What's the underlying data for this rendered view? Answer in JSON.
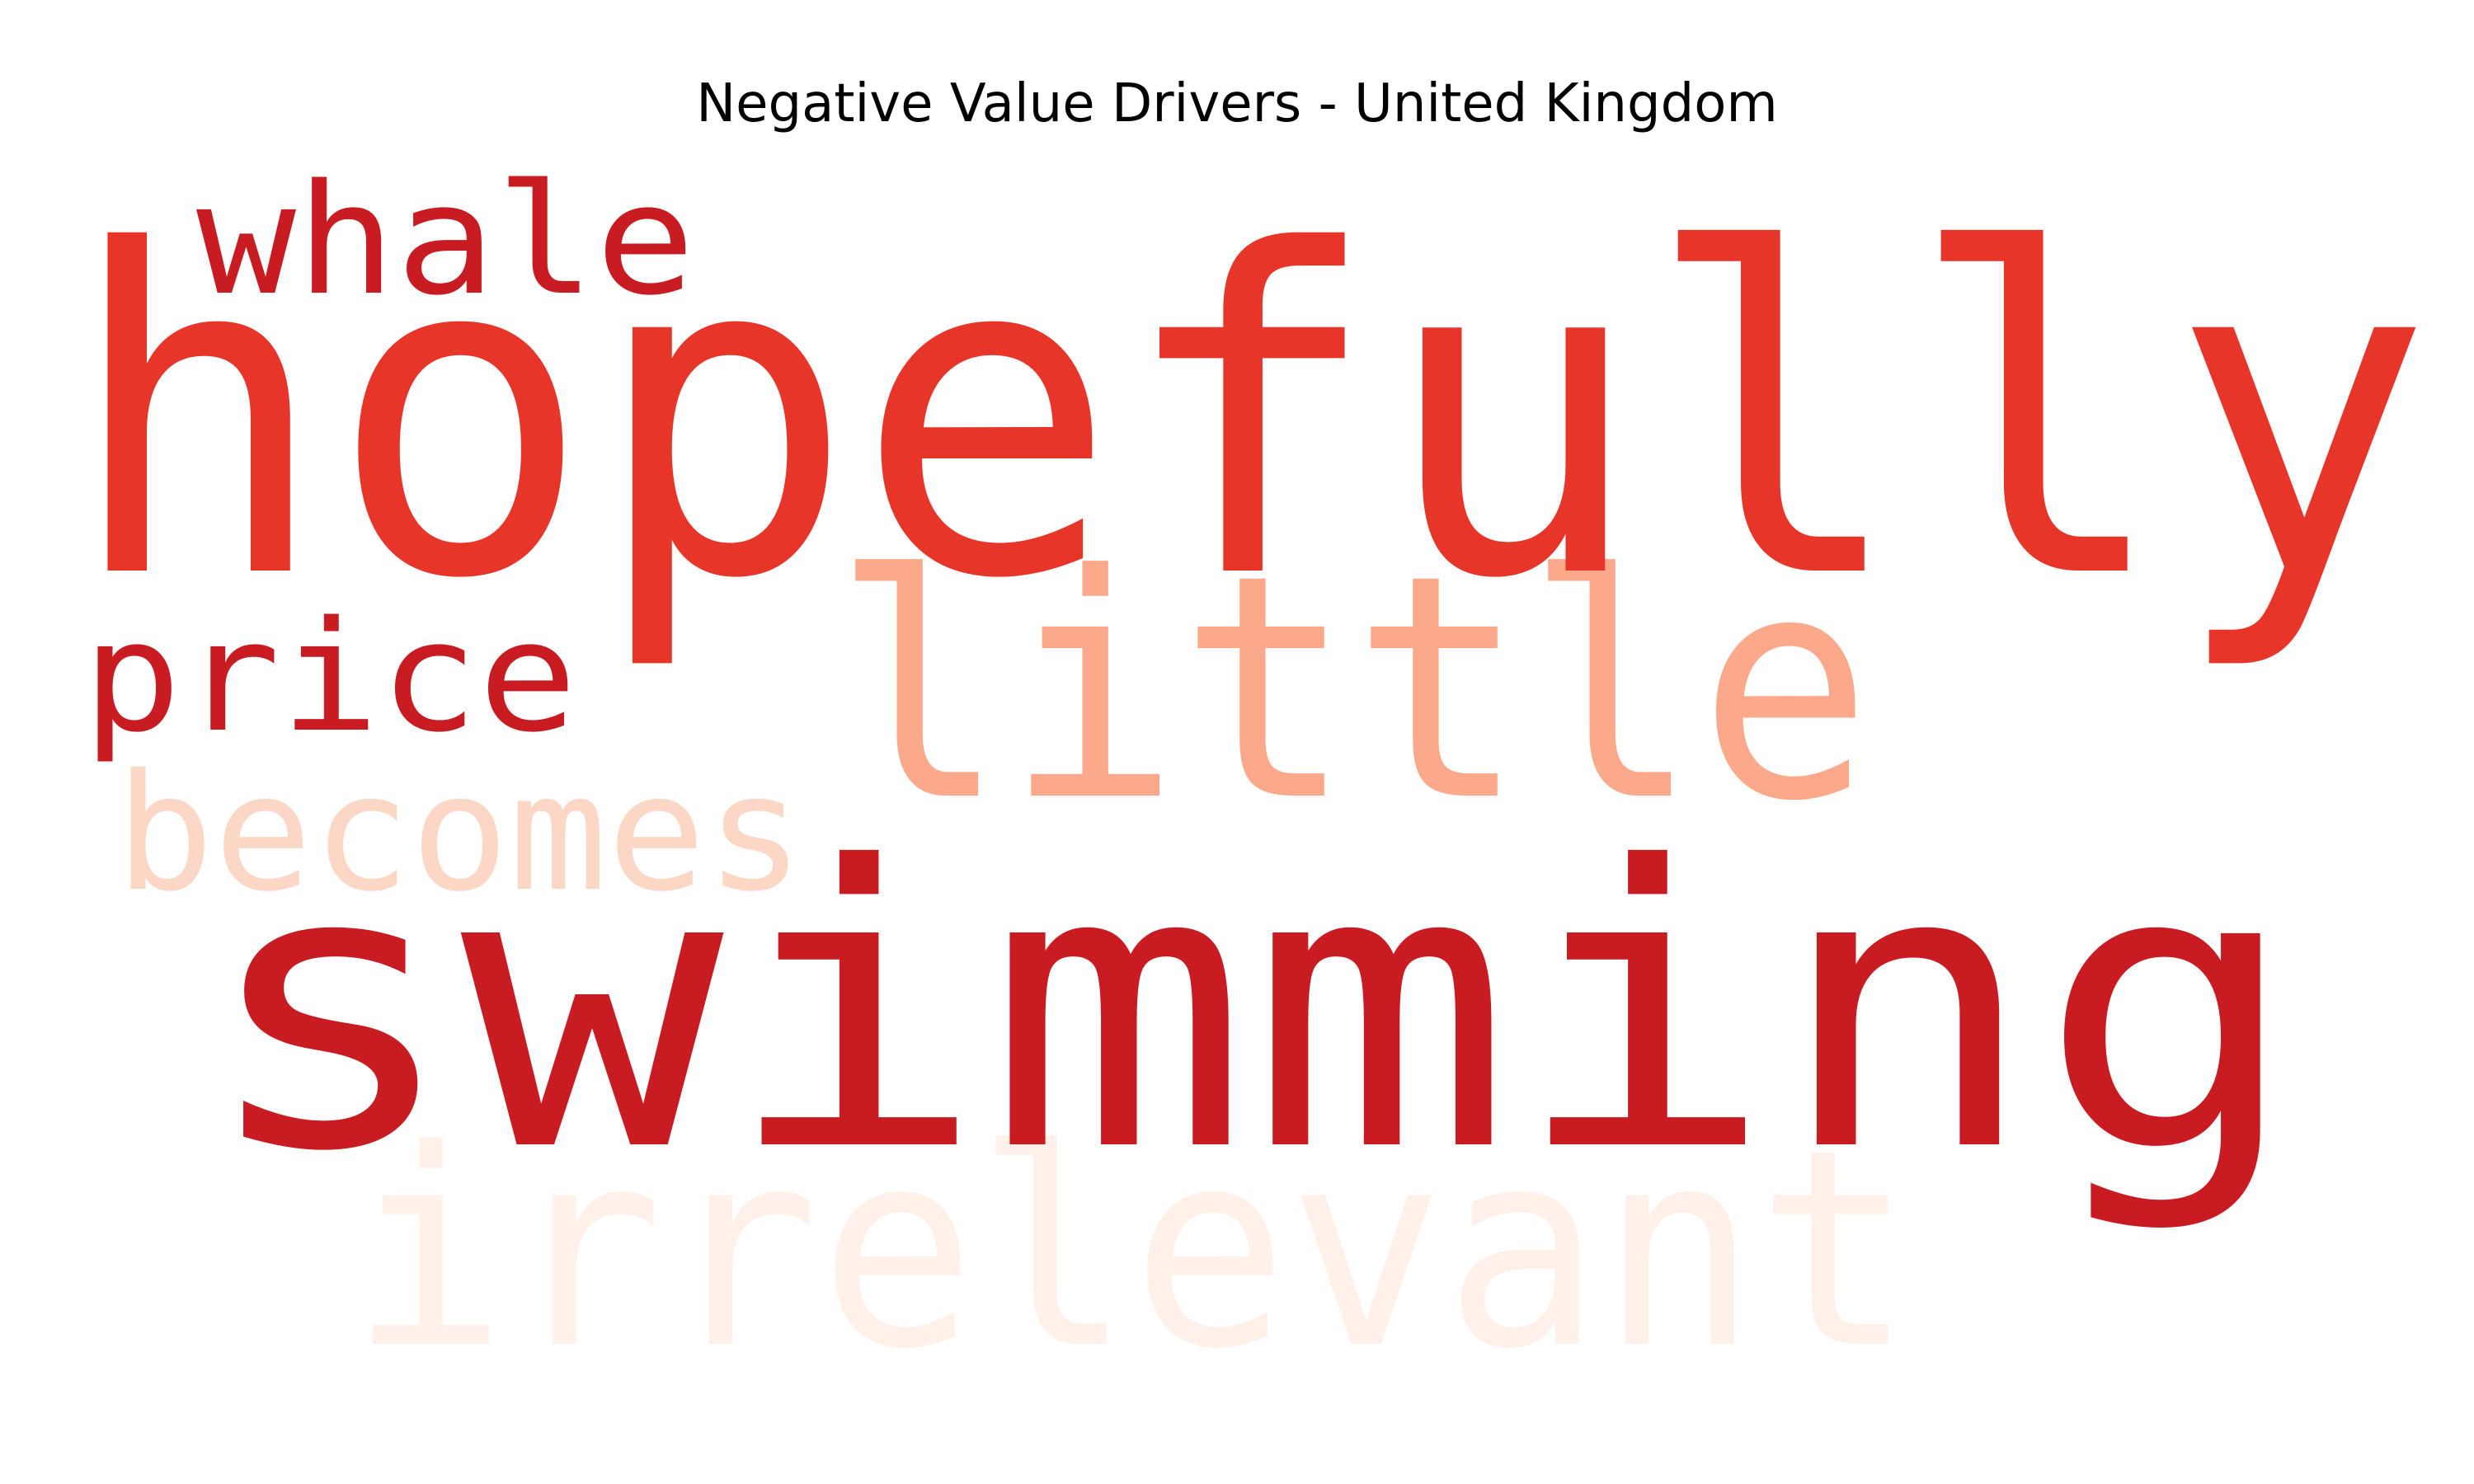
{
  "title": "Negative Value Drivers - United Kingdom",
  "words": [
    {
      "id": "irrelevant",
      "text": "irrelevant",
      "color": "#fff0ea"
    },
    {
      "id": "becomes",
      "text": "becomes",
      "color": "#fdd7c5"
    },
    {
      "id": "little",
      "text": "little",
      "color": "#fca98b"
    },
    {
      "id": "hopefully",
      "text": "hopefully",
      "color": "#e8352a"
    },
    {
      "id": "whale",
      "text": "whale",
      "color": "#c81c22"
    },
    {
      "id": "price",
      "text": "price",
      "color": "#c81c22"
    },
    {
      "id": "swimming",
      "text": "swimming",
      "color": "#c81c22"
    }
  ]
}
